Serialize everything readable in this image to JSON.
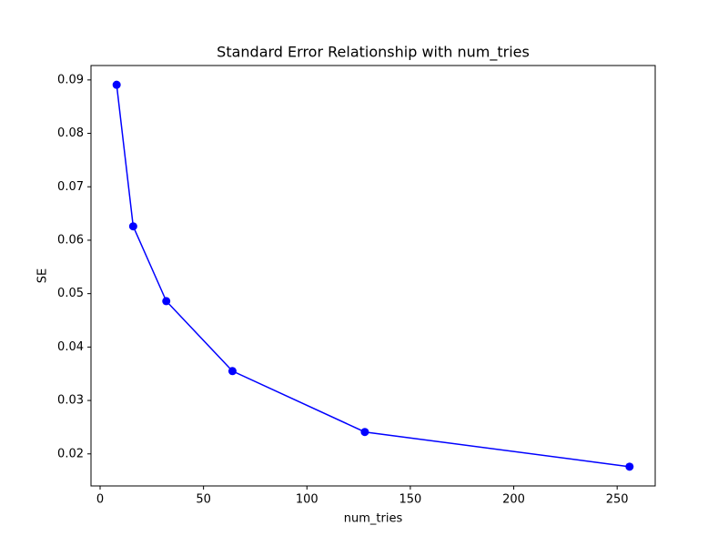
{
  "chart_data": {
    "type": "line",
    "title": "Standard Error Relationship with num_tries",
    "x_label": "num_tries",
    "y_label": "SE",
    "x": [
      8,
      16,
      32,
      64,
      128,
      256
    ],
    "series": [
      {
        "name": "SE",
        "color": "#0000ff",
        "values": [
          0.0891,
          0.0626,
          0.0486,
          0.0355,
          0.0241,
          0.0176
        ]
      }
    ],
    "xlim": [
      -4.4,
      268.4
    ],
    "xticks": [
      0,
      50,
      100,
      150,
      200,
      250
    ],
    "ylim": [
      0.014,
      0.0927
    ],
    "yticks": [
      0.02,
      0.03,
      0.04,
      0.05,
      0.06,
      0.07,
      0.08,
      0.09
    ],
    "grid": false,
    "markers": true
  }
}
